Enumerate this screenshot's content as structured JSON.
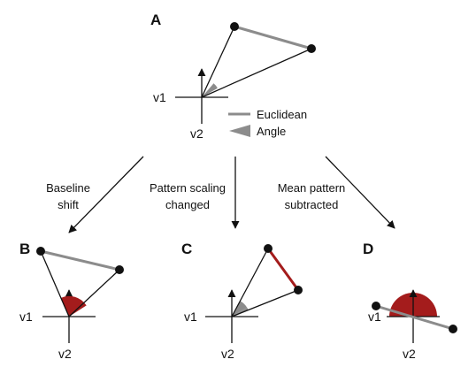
{
  "panels": {
    "A": {
      "letter": "A",
      "x_axis_label": "v1",
      "y_axis_label": "v2"
    },
    "B": {
      "letter": "B",
      "x_axis_label": "v1",
      "y_axis_label": "v2"
    },
    "C": {
      "letter": "C",
      "x_axis_label": "v1",
      "y_axis_label": "v2"
    },
    "D": {
      "letter": "D",
      "x_axis_label": "v1",
      "y_axis_label": "v2"
    }
  },
  "legend": {
    "euclidean_label": "Euclidean",
    "angle_label": "Angle"
  },
  "transitions": [
    {
      "line1": "Baseline",
      "line2": "shift"
    },
    {
      "line1": "Pattern scaling",
      "line2": "changed"
    },
    {
      "line1": "Mean pattern",
      "line2": "subtracted"
    }
  ],
  "colors": {
    "euclidean_default": "#8c8c8c",
    "angle_default": "#8c8c8c",
    "highlight": "#a41c1c",
    "lines": "#111111"
  }
}
